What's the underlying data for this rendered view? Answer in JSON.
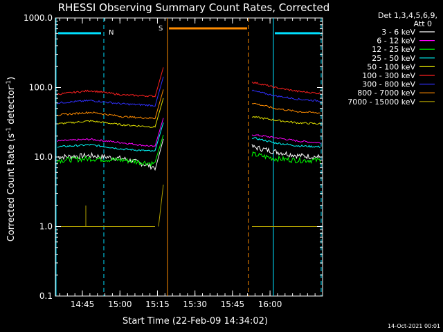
{
  "chart_data": {
    "type": "line",
    "title": "RHESSI Observing Summary Count Rates, Corrected",
    "xlabel": "Start Time (22-Feb-09 14:34:02)",
    "ylabel": "Corrected Count Rate (s",
    "ylabel_sup": "-1",
    "ylabel_tail": " detector",
    "ylabel_sup2": "-1",
    "ylabel_close": ")",
    "yscale": "log",
    "ylim": [
      0.1,
      1000
    ],
    "xlim_minutes": [
      14.57,
      16.35
    ],
    "x_ticks": [
      {
        "label": "14:45",
        "t": 14.75
      },
      {
        "label": "15:00",
        "t": 15.0
      },
      {
        "label": "15:15",
        "t": 15.25
      },
      {
        "label": "15:30",
        "t": 15.5
      },
      {
        "label": "15:45",
        "t": 15.75
      },
      {
        "label": "16:00",
        "t": 16.0
      }
    ],
    "y_ticks": [
      {
        "label": "0.1",
        "v": 0.1
      },
      {
        "label": "1.0",
        "v": 1
      },
      {
        "label": "10.0",
        "v": 10
      },
      {
        "label": "100.0",
        "v": 100
      },
      {
        "label": "1000.0",
        "v": 1000
      }
    ],
    "legend_header": [
      "Det 1,3,4,5,6,9,",
      "Att 0"
    ],
    "series": [
      {
        "name": "3 - 6 keV",
        "color": "#ffffff",
        "pre": [
          10,
          10.5,
          9.5,
          7
        ],
        "post": [
          14,
          12,
          10.5,
          10
        ]
      },
      {
        "name": "6 - 12 keV",
        "color": "#ff00ff",
        "pre": [
          17,
          18,
          16,
          14
        ],
        "post": [
          21,
          19,
          17,
          16
        ]
      },
      {
        "name": "12 - 25 keV",
        "color": "#00ff00",
        "pre": [
          9,
          9.5,
          9,
          8
        ],
        "post": [
          11,
          9.5,
          9,
          9
        ]
      },
      {
        "name": "25 - 50 keV",
        "color": "#00ffff",
        "pre": [
          14,
          15,
          13,
          12
        ],
        "post": [
          19,
          16,
          14.5,
          14
        ]
      },
      {
        "name": "50 - 100 keV",
        "color": "#e0e000",
        "pre": [
          30,
          33,
          29,
          27
        ],
        "post": [
          38,
          34,
          31,
          30
        ]
      },
      {
        "name": "100 - 300 keV",
        "color": "#ff2020",
        "pre": [
          80,
          90,
          78,
          75
        ],
        "post": [
          120,
          100,
          88,
          82
        ]
      },
      {
        "name": "300 - 800 keV",
        "color": "#3030ff",
        "pre": [
          60,
          65,
          58,
          55
        ],
        "post": [
          90,
          76,
          68,
          64
        ]
      },
      {
        "name": "800 - 7000 keV",
        "color": "#ff8c00",
        "pre": [
          40,
          44,
          38,
          36
        ],
        "post": [
          60,
          50,
          45,
          43
        ]
      },
      {
        "name": "7000 - 15000 keV",
        "color": "#b0a000",
        "pre": [
          1,
          1,
          1,
          1
        ],
        "post": [
          1,
          1,
          1,
          1
        ]
      }
    ],
    "annotations": [
      {
        "label": "N",
        "color": "#00e0ff"
      },
      {
        "label": "S",
        "color": "#ff8c00"
      }
    ],
    "footer_date": "14-Oct-2021 00:01"
  }
}
